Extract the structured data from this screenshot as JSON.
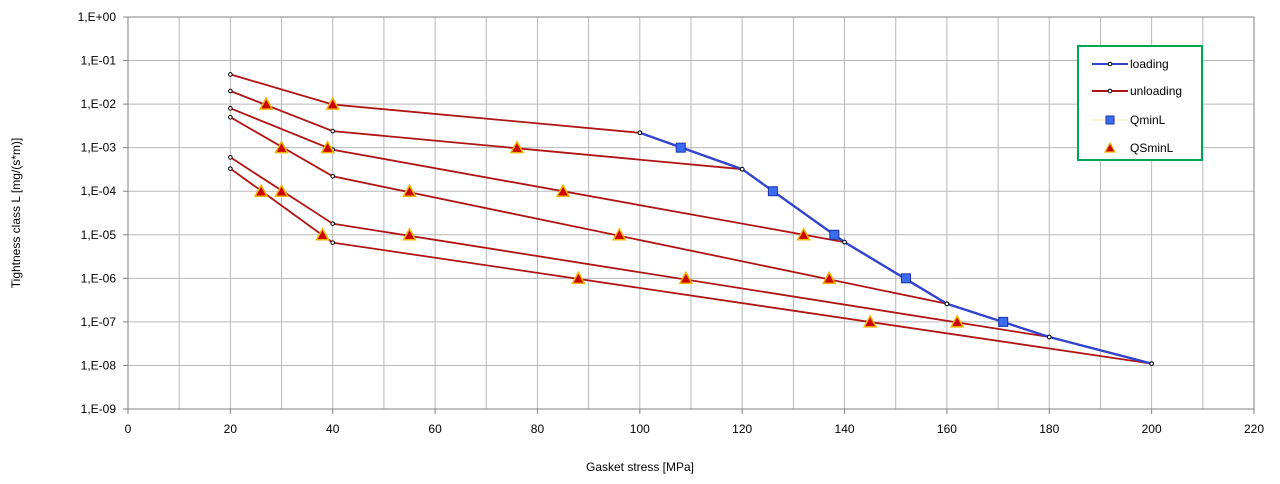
{
  "chart_data": {
    "type": "line",
    "xlabel": "Gasket stress [MPa]",
    "ylabel": "Tightness class L [mg/(s*m)]",
    "xlim": [
      0,
      220
    ],
    "ylim_log10": [
      -9,
      0
    ],
    "y_scale": "log",
    "x_ticks": [
      "0",
      "20",
      "40",
      "60",
      "80",
      "100",
      "120",
      "140",
      "160",
      "180",
      "200",
      "220"
    ],
    "y_ticks": [
      "1,E+00",
      "1,E-01",
      "1,E-02",
      "1,E-03",
      "1,E-04",
      "1,E-05",
      "1,E-06",
      "1,E-07",
      "1,E-08",
      "1,E-09"
    ],
    "grid": true,
    "legend_position": "top-right",
    "legend": [
      {
        "label": "loading",
        "kind": "line",
        "color": "#3344cc"
      },
      {
        "label": "unloading",
        "kind": "line",
        "color": "#b01515"
      },
      {
        "label": "QminL",
        "kind": "square",
        "color": "#3b6cf0"
      },
      {
        "label": "QSminL",
        "kind": "triangle",
        "color": "#cc0000"
      }
    ],
    "loading": {
      "name": "loading",
      "color": "#3344cc",
      "points": [
        [
          100,
          0.0022
        ],
        [
          120,
          0.00032
        ],
        [
          140,
          6.8e-06
        ],
        [
          160,
          2.6e-07
        ],
        [
          180,
          4.5e-08
        ],
        [
          200,
          1.1e-08
        ]
      ]
    },
    "unloading": [
      {
        "color": "#b01515",
        "points": [
          [
            100,
            0.0022
          ],
          [
            40,
            0.0098
          ],
          [
            20,
            0.048
          ]
        ]
      },
      {
        "color": "#b01515",
        "points": [
          [
            120,
            0.00032
          ],
          [
            40,
            0.0024
          ],
          [
            20,
            0.02
          ]
        ]
      },
      {
        "color": "#b01515",
        "points": [
          [
            140,
            6.8e-06
          ],
          [
            40,
            0.0009
          ],
          [
            20,
            0.008
          ]
        ]
      },
      {
        "color": "#b01515",
        "points": [
          [
            160,
            2.6e-07
          ],
          [
            40,
            0.00022
          ],
          [
            20,
            0.005
          ]
        ]
      },
      {
        "color": "#b01515",
        "points": [
          [
            180,
            4.5e-08
          ],
          [
            40,
            1.8e-05
          ],
          [
            20,
            0.0006
          ]
        ]
      },
      {
        "color": "#b01515",
        "points": [
          [
            200,
            1.1e-08
          ],
          [
            40,
            6.6e-06
          ],
          [
            20,
            0.00033
          ]
        ]
      }
    ],
    "QminL": {
      "name": "QminL",
      "color": "#3b6cf0",
      "points": [
        [
          108,
          0.001
        ],
        [
          126,
          0.0001
        ],
        [
          138,
          1e-05
        ],
        [
          152,
          1e-06
        ],
        [
          171,
          1e-07
        ]
      ]
    },
    "QSminL": {
      "name": "QSminL",
      "color": "#cc0000",
      "points": [
        [
          27,
          0.01
        ],
        [
          40,
          0.01
        ],
        [
          30,
          0.001
        ],
        [
          39,
          0.001
        ],
        [
          76,
          0.001
        ],
        [
          55,
          0.0001
        ],
        [
          85,
          0.0001
        ],
        [
          26,
          0.0001
        ],
        [
          30,
          0.0001
        ],
        [
          38,
          1e-05
        ],
        [
          55,
          1e-05
        ],
        [
          96,
          1e-05
        ],
        [
          132,
          1e-05
        ],
        [
          88,
          1e-06
        ],
        [
          109,
          1e-06
        ],
        [
          137,
          1e-06
        ],
        [
          145,
          1e-07
        ],
        [
          162,
          1e-07
        ]
      ]
    }
  }
}
